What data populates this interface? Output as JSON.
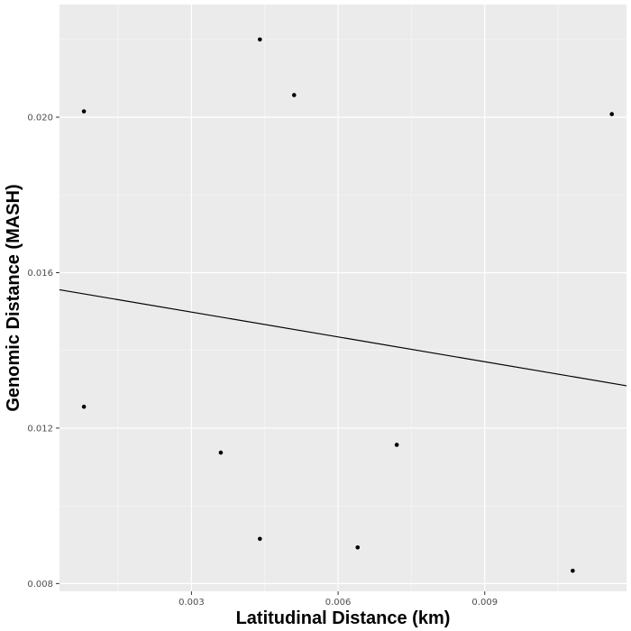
{
  "chart_data": {
    "type": "scatter",
    "title": "",
    "xlabel": "Latitudinal Distance (km)",
    "ylabel": "Genomic Distance (MASH)",
    "xlim": [
      0.0003,
      0.0119
    ],
    "ylim": [
      0.0078,
      0.0229
    ],
    "x_ticks": [
      0.003,
      0.006,
      0.009
    ],
    "x_tick_labels": [
      "0.003",
      "0.006",
      "0.009"
    ],
    "y_ticks": [
      0.008,
      0.012,
      0.016,
      0.02
    ],
    "y_tick_labels": [
      "0.008",
      "0.012",
      "0.016",
      "0.020"
    ],
    "grid": true,
    "background": "#ebebeb",
    "grid_color": "#ffffff",
    "point_color": "#000000",
    "points": [
      {
        "x": 0.0008,
        "y": 0.02015
      },
      {
        "x": 0.0008,
        "y": 0.01255
      },
      {
        "x": 0.0036,
        "y": 0.01137
      },
      {
        "x": 0.0044,
        "y": 0.022
      },
      {
        "x": 0.0044,
        "y": 0.00915
      },
      {
        "x": 0.0051,
        "y": 0.02057
      },
      {
        "x": 0.0064,
        "y": 0.00893
      },
      {
        "x": 0.0072,
        "y": 0.01157
      },
      {
        "x": 0.0108,
        "y": 0.00833
      },
      {
        "x": 0.0116,
        "y": 0.02008
      }
    ],
    "fit_line": {
      "color": "#000000",
      "points": [
        {
          "x": 0.0003,
          "y": 0.01556
        },
        {
          "x": 0.0119,
          "y": 0.01309
        }
      ]
    }
  }
}
